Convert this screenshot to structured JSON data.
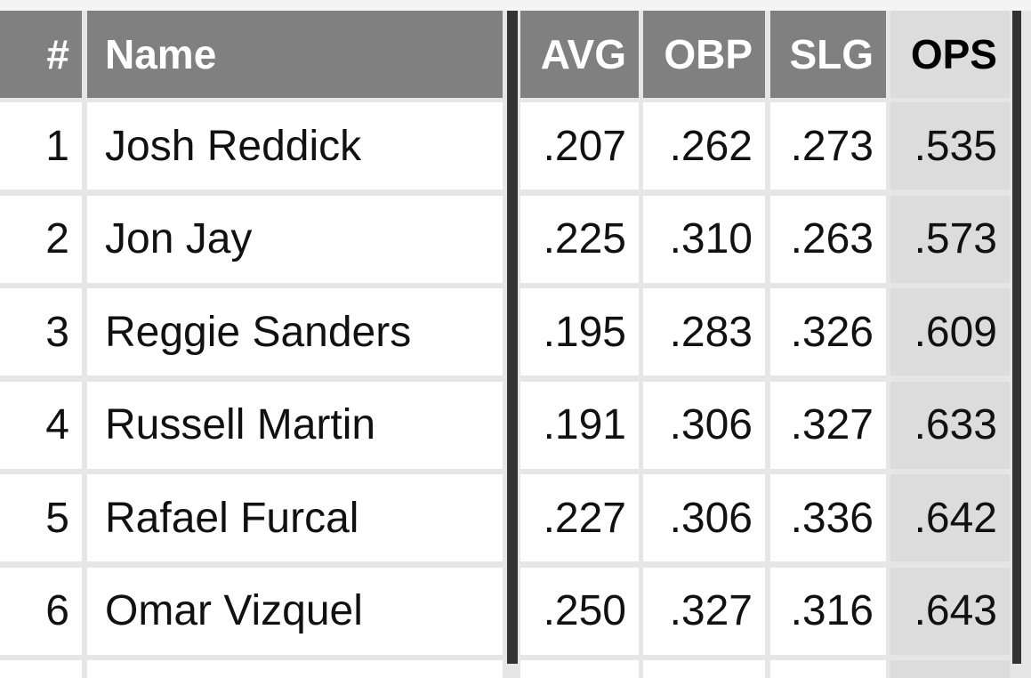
{
  "table": {
    "header": [
      "#",
      "Name",
      "AVG",
      "OBP",
      "SLG",
      "OPS"
    ],
    "rows": [
      [
        "1",
        "Josh Reddick",
        ".207",
        ".262",
        ".273",
        ".535"
      ],
      [
        "2",
        "Jon Jay",
        ".225",
        ".310",
        ".263",
        ".573"
      ],
      [
        "3",
        "Reggie Sanders",
        ".195",
        ".283",
        ".326",
        ".609"
      ],
      [
        "4",
        "Russell Martin",
        ".191",
        ".306",
        ".327",
        ".633"
      ],
      [
        "5",
        "Rafael Furcal",
        ".227",
        ".306",
        ".336",
        ".642"
      ],
      [
        "6",
        "Omar Vizquel",
        ".250",
        ".327",
        ".316",
        ".643"
      ]
    ]
  }
}
